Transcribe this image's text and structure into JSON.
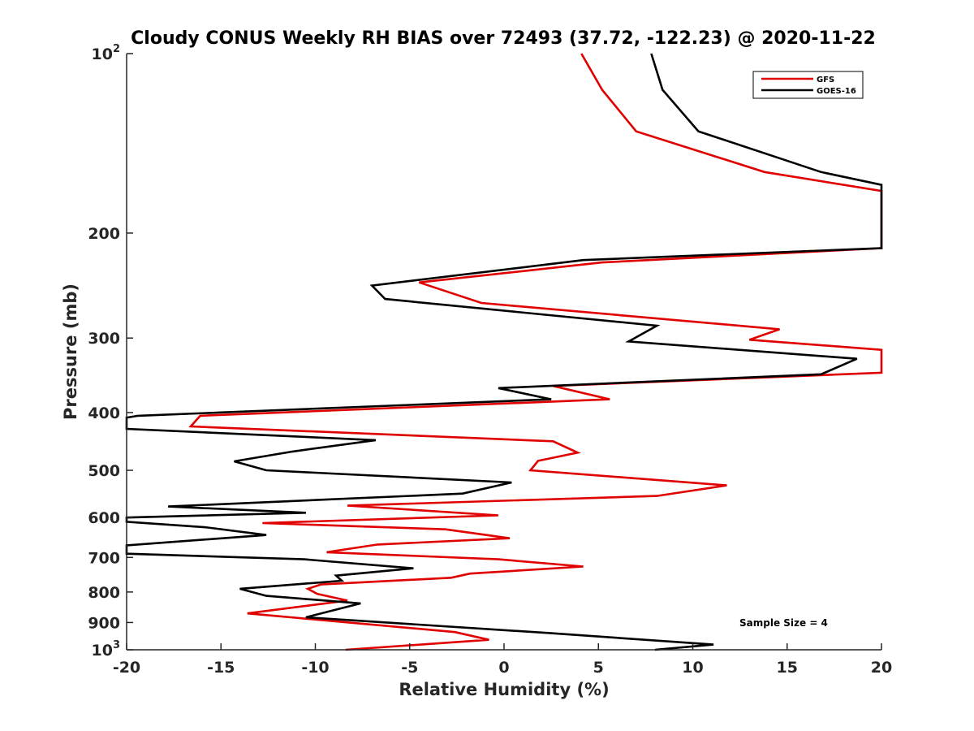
{
  "chart_data": {
    "type": "line",
    "title": "Cloudy CONUS Weekly RH BIAS over 72493 (37.72, -122.23) @ 2020-11-22",
    "xlabel": "Relative Humidity (%)",
    "ylabel": "Pressure (mb)",
    "xlim": [
      -20,
      20
    ],
    "ylim": [
      100,
      1000
    ],
    "yscale": "log",
    "yreversed": true,
    "x_ticks": [
      "-20",
      "-15",
      "-10",
      "-5",
      "0",
      "5",
      "10",
      "15",
      "20"
    ],
    "y_ticks": [
      {
        "value": 100,
        "base": "10",
        "exp": "2"
      },
      {
        "value": 200,
        "base": "200",
        "exp": ""
      },
      {
        "value": 300,
        "base": "300",
        "exp": ""
      },
      {
        "value": 400,
        "base": "400",
        "exp": ""
      },
      {
        "value": 500,
        "base": "500",
        "exp": ""
      },
      {
        "value": 600,
        "base": "600",
        "exp": ""
      },
      {
        "value": 700,
        "base": "700",
        "exp": ""
      },
      {
        "value": 800,
        "base": "800",
        "exp": ""
      },
      {
        "value": 900,
        "base": "900",
        "exp": ""
      },
      {
        "value": 1000,
        "base": "10",
        "exp": "3"
      }
    ],
    "grid": false,
    "legend_position": "top-right",
    "series": [
      {
        "name": "GFS",
        "color": "#e00000",
        "points": [
          [
            4.1,
            100
          ],
          [
            5.2,
            115
          ],
          [
            7.0,
            135
          ],
          [
            13.8,
            158
          ],
          [
            20,
            170
          ],
          [
            20,
            212
          ],
          [
            5.2,
            224
          ],
          [
            -4.5,
            242
          ],
          [
            -1.2,
            262
          ],
          [
            14.6,
            290
          ],
          [
            13.0,
            302
          ],
          [
            20,
            314
          ],
          [
            20,
            343
          ],
          [
            2.6,
            361
          ],
          [
            5.6,
            380
          ],
          [
            -16.1,
            405
          ],
          [
            -16.6,
            422
          ],
          [
            2.6,
            447
          ],
          [
            3.9,
            467
          ],
          [
            1.8,
            482
          ],
          [
            1.4,
            500
          ],
          [
            11.8,
            530
          ],
          [
            8.1,
            552
          ],
          [
            -8.3,
            573
          ],
          [
            -0.3,
            595
          ],
          [
            -12.8,
            613
          ],
          [
            -3.1,
            628
          ],
          [
            0.3,
            650
          ],
          [
            -6.7,
            666
          ],
          [
            -9.4,
            686
          ],
          [
            -0.3,
            705
          ],
          [
            4.2,
            725
          ],
          [
            -1.8,
            745
          ],
          [
            -2.8,
            757
          ],
          [
            -9.7,
            777
          ],
          [
            -10.4,
            790
          ],
          [
            -9.9,
            806
          ],
          [
            -8.3,
            827
          ],
          [
            -13.6,
            869
          ],
          [
            -2.6,
            934
          ],
          [
            -0.8,
            962
          ],
          [
            -8.4,
            1000
          ]
        ]
      },
      {
        "name": "GOES-16",
        "color": "#000000",
        "points": [
          [
            7.8,
            100
          ],
          [
            8.4,
            115
          ],
          [
            10.3,
            135
          ],
          [
            16.8,
            158
          ],
          [
            20,
            166
          ],
          [
            20,
            212
          ],
          [
            4.2,
            222
          ],
          [
            -7.0,
            245
          ],
          [
            -6.3,
            258
          ],
          [
            8.1,
            286
          ],
          [
            6.6,
            304
          ],
          [
            18.7,
            325
          ],
          [
            16.8,
            345
          ],
          [
            -0.3,
            364
          ],
          [
            2.5,
            380
          ],
          [
            -19.4,
            405
          ],
          [
            -20,
            408
          ],
          [
            -20,
            426
          ],
          [
            -6.8,
            445
          ],
          [
            -11.2,
            465
          ],
          [
            -14.3,
            483
          ],
          [
            -12.6,
            500
          ],
          [
            0.4,
            524
          ],
          [
            -2.2,
            547
          ],
          [
            -17.8,
            575
          ],
          [
            -10.5,
            589
          ],
          [
            -20,
            600
          ],
          [
            -20,
            610
          ],
          [
            -15.8,
            623
          ],
          [
            -12.6,
            642
          ],
          [
            -20,
            668
          ],
          [
            -20,
            690
          ],
          [
            -10.6,
            705
          ],
          [
            -4.8,
            730
          ],
          [
            -8.9,
            751
          ],
          [
            -8.6,
            766
          ],
          [
            -14.0,
            790
          ],
          [
            -12.6,
            812
          ],
          [
            -7.6,
            836
          ],
          [
            -10.5,
            882
          ],
          [
            2.5,
            938
          ],
          [
            11.1,
            980
          ],
          [
            8.0,
            1000
          ]
        ]
      }
    ],
    "annotation": "Sample Size = 4"
  }
}
